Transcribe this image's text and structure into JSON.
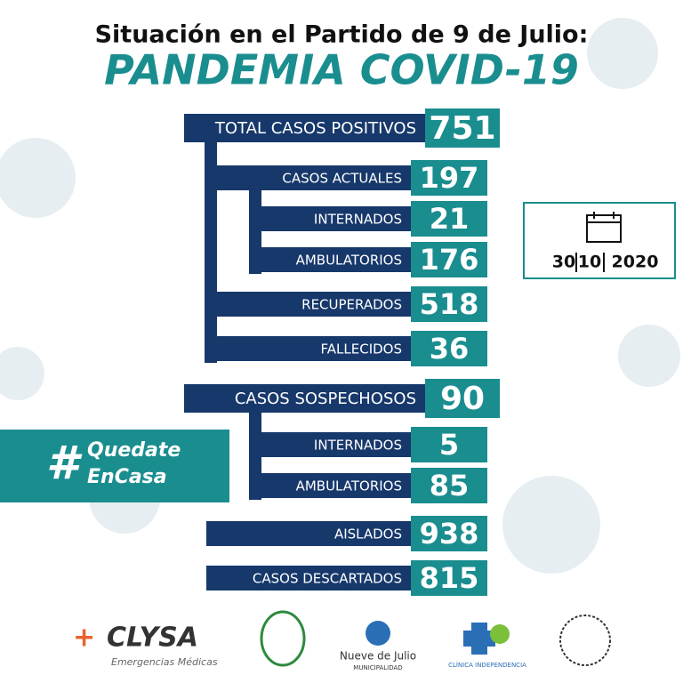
{
  "header": {
    "subtitle": "Situación en el Partido de 9 de Julio:",
    "title": "PANDEMIA COVID-19"
  },
  "rows": [
    {
      "label": "TOTAL CASOS POSITIVOS",
      "value": 751
    },
    {
      "label": "CASOS ACTUALES",
      "value": 197
    },
    {
      "label": "INTERNADOS",
      "value": 21
    },
    {
      "label": "AMBULATORIOS",
      "value": 176
    },
    {
      "label": "RECUPERADOS",
      "value": 518
    },
    {
      "label": "FALLECIDOS",
      "value": 36
    },
    {
      "label": "CASOS SOSPECHOSOS",
      "value": 90
    },
    {
      "label": "INTERNADOS",
      "value": 5
    },
    {
      "label": "AMBULATORIOS",
      "value": 85
    },
    {
      "label": "AISLADOS",
      "value": 938
    },
    {
      "label": "CASOS DESCARTADOS",
      "value": 815
    }
  ],
  "date": {
    "day": "30",
    "month": "10",
    "year": "2020"
  },
  "hashtag": {
    "line1": "Quedate",
    "line2": "EnCasa"
  },
  "logos": {
    "clysa": "CLYSA",
    "clysa_sub": "Emergencias Médicas",
    "muni": "Nueve de Julio",
    "muni_sub": "MUNICIPALIDAD",
    "clinica": "CLÍNICA INDEPENDENCIA"
  }
}
